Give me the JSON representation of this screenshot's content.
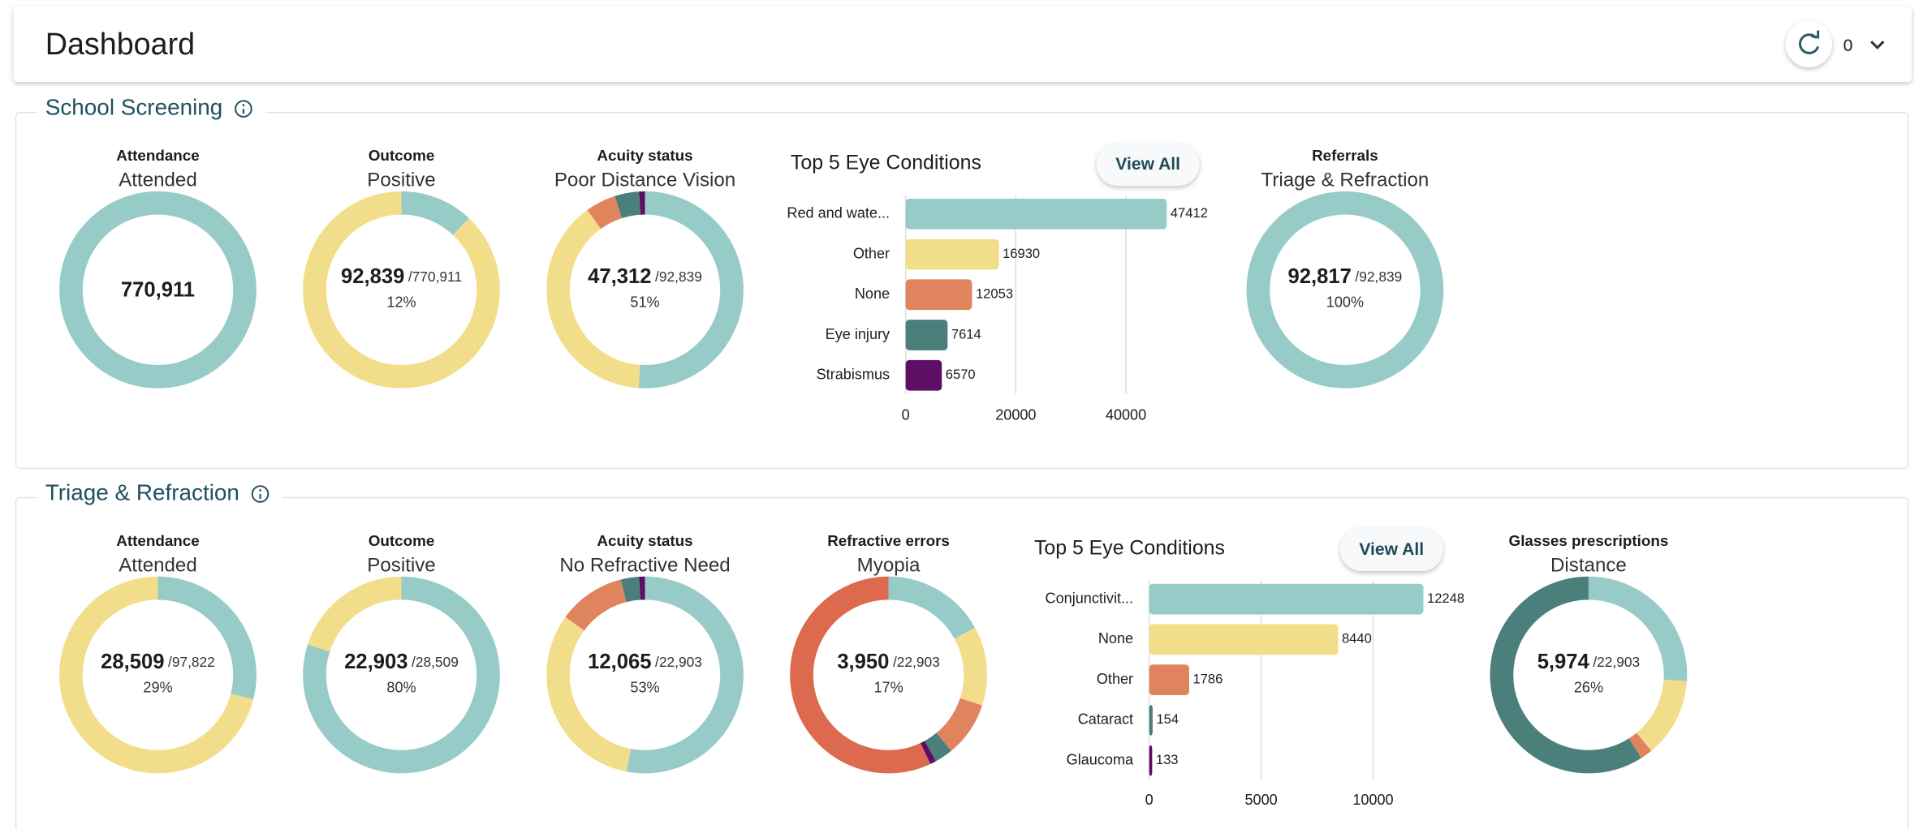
{
  "header": {
    "title": "Dashboard",
    "badge": "0"
  },
  "sections": [
    {
      "title": "School Screening",
      "cards": [
        {
          "type": "donut",
          "heading": "Attendance",
          "subtitle": "Attended",
          "value": "770,911",
          "segments": [
            {
              "color": "#96cbc8",
              "value": 100
            }
          ]
        },
        {
          "type": "donut",
          "heading": "Outcome",
          "subtitle": "Positive",
          "value": "92,839",
          "total": "/770,911",
          "percent": "12%",
          "segments": [
            {
              "color": "#96cbc8",
              "value": 12
            },
            {
              "color": "#f2de8a",
              "value": 88
            }
          ]
        },
        {
          "type": "donut",
          "heading": "Acuity status",
          "subtitle": "Poor Distance Vision",
          "value": "47,312",
          "total": "/92,839",
          "percent": "51%",
          "segments": [
            {
              "color": "#96cbc8",
              "value": 51
            },
            {
              "color": "#f2de8a",
              "value": 39
            },
            {
              "color": "#e0845e",
              "value": 5
            },
            {
              "color": "#4a7f7c",
              "value": 4
            },
            {
              "color": "#5c0f63",
              "value": 1
            }
          ]
        },
        {
          "type": "bar",
          "title": "Top 5 Eye Conditions",
          "button": "View All",
          "categories": [
            "Red and wate...",
            "Other",
            "None",
            "Eye injury",
            "Strabismus"
          ],
          "values": [
            47412,
            16930,
            12053,
            7614,
            6570
          ],
          "colors": [
            "#96cbc8",
            "#f2de8a",
            "#e0845e",
            "#4a7f7c",
            "#5c0f63"
          ],
          "xlim": [
            0,
            50000
          ],
          "xticks": [
            0,
            20000,
            40000
          ]
        },
        {
          "type": "donut",
          "heading": "Referrals",
          "subtitle": "Triage & Refraction",
          "value": "92,817",
          "total": "/92,839",
          "percent": "100%",
          "segments": [
            {
              "color": "#96cbc8",
              "value": 100
            }
          ]
        }
      ]
    },
    {
      "title": "Triage & Refraction",
      "cards": [
        {
          "type": "donut",
          "heading": "Attendance",
          "subtitle": "Attended",
          "value": "28,509",
          "total": "/97,822",
          "percent": "29%",
          "segments": [
            {
              "color": "#96cbc8",
              "value": 29
            },
            {
              "color": "#f2de8a",
              "value": 71
            }
          ]
        },
        {
          "type": "donut",
          "heading": "Outcome",
          "subtitle": "Positive",
          "value": "22,903",
          "total": "/28,509",
          "percent": "80%",
          "segments": [
            {
              "color": "#96cbc8",
              "value": 80
            },
            {
              "color": "#f2de8a",
              "value": 20
            }
          ]
        },
        {
          "type": "donut",
          "heading": "Acuity status",
          "subtitle": "No Refractive Need",
          "value": "12,065",
          "total": "/22,903",
          "percent": "53%",
          "segments": [
            {
              "color": "#96cbc8",
              "value": 53
            },
            {
              "color": "#f2de8a",
              "value": 32
            },
            {
              "color": "#e0845e",
              "value": 11
            },
            {
              "color": "#4a7f7c",
              "value": 3
            },
            {
              "color": "#5c0f63",
              "value": 1
            }
          ]
        },
        {
          "type": "donut",
          "heading": "Refractive errors",
          "subtitle": "Myopia",
          "value": "3,950",
          "total": "/22,903",
          "percent": "17%",
          "segments": [
            {
              "color": "#96cbc8",
              "value": 17
            },
            {
              "color": "#f2de8a",
              "value": 13
            },
            {
              "color": "#e0845e",
              "value": 9
            },
            {
              "color": "#4a7f7c",
              "value": 3
            },
            {
              "color": "#5c0f63",
              "value": 1
            },
            {
              "color": "#dd6a4f",
              "value": 57
            }
          ]
        },
        {
          "type": "bar",
          "title": "Top 5 Eye Conditions",
          "button": "View All",
          "categories": [
            "Conjunctivit...",
            "None",
            "Other",
            "Cataract",
            "Glaucoma"
          ],
          "values": [
            12248,
            8440,
            1786,
            154,
            133
          ],
          "colors": [
            "#96cbc8",
            "#f2de8a",
            "#e0845e",
            "#4a7f7c",
            "#5c0f63"
          ],
          "xlim": [
            0,
            12300
          ],
          "xticks": [
            0,
            5000,
            10000
          ]
        },
        {
          "type": "donut",
          "heading": "Glasses prescriptions",
          "subtitle": "Distance",
          "value": "5,974",
          "total": "/22,903",
          "percent": "26%",
          "segments": [
            {
              "color": "#96cbc8",
              "value": 26
            },
            {
              "color": "#f2de8a",
              "value": 13
            },
            {
              "color": "#e0845e",
              "value": 2
            },
            {
              "color": "#4a7f7c",
              "value": 59
            }
          ]
        }
      ]
    }
  ]
}
